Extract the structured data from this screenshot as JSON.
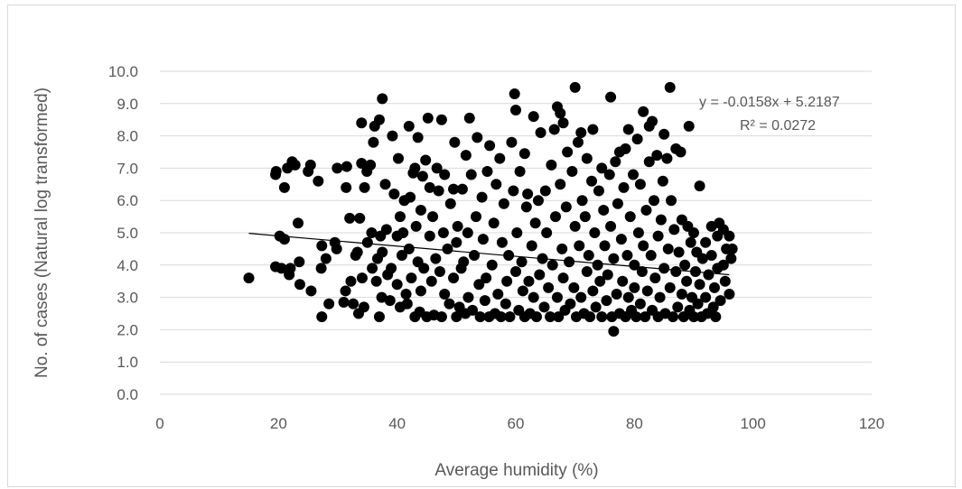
{
  "chart_data": {
    "type": "scatter",
    "title": "",
    "xlabel": "Average humidity (%)",
    "ylabel": "No. of cases (Natural log transformed)",
    "xlim": [
      0,
      120
    ],
    "ylim": [
      0,
      10
    ],
    "x_ticks": [
      0,
      20,
      40,
      60,
      80,
      100,
      120
    ],
    "y_ticks": [
      0.0,
      1.0,
      2.0,
      3.0,
      4.0,
      5.0,
      6.0,
      7.0,
      8.0,
      9.0,
      10.0
    ],
    "x_tick_labels": [
      "0",
      "20",
      "40",
      "60",
      "80",
      "100",
      "120"
    ],
    "y_tick_labels": [
      "0.0",
      "1.0",
      "2.0",
      "3.0",
      "4.0",
      "5.0",
      "6.0",
      "7.0",
      "8.0",
      "9.0",
      "10.0"
    ],
    "grid": "horizontal",
    "legend": "none",
    "marker_color": "#000000",
    "gridline_color": "#d9d9d9",
    "text_color": "#595959",
    "trendline": {
      "type": "linear",
      "slope": -0.0158,
      "intercept": 5.2187,
      "x_range": [
        15,
        96
      ],
      "equation_label": "y = -0.0158x + 5.2187",
      "r2_label": "R² = 0.0272"
    },
    "points": [
      [
        15,
        3.6
      ],
      [
        19.5,
        6.8
      ],
      [
        19.6,
        6.9
      ],
      [
        19.5,
        3.95
      ],
      [
        20.2,
        4.9
      ],
      [
        20.5,
        3.9
      ],
      [
        21,
        4.8
      ],
      [
        21,
        6.4
      ],
      [
        21.5,
        7.0
      ],
      [
        21.8,
        3.7
      ],
      [
        22,
        3.9
      ],
      [
        22.3,
        7.2
      ],
      [
        22.8,
        7.1
      ],
      [
        23.3,
        5.3
      ],
      [
        23.5,
        4.1
      ],
      [
        23.6,
        3.4
      ],
      [
        25,
        6.9
      ],
      [
        25.4,
        7.1
      ],
      [
        25.5,
        3.2
      ],
      [
        26.7,
        6.6
      ],
      [
        27.2,
        3.9
      ],
      [
        27.3,
        4.6
      ],
      [
        27.3,
        2.4
      ],
      [
        28,
        4.2
      ],
      [
        28.5,
        2.8
      ],
      [
        29.5,
        4.7
      ],
      [
        29.8,
        4.5
      ],
      [
        29.9,
        7.0
      ],
      [
        31,
        2.85
      ],
      [
        31.3,
        3.2
      ],
      [
        31.4,
        6.4
      ],
      [
        31.5,
        7.05
      ],
      [
        32.0,
        5.45
      ],
      [
        32.2,
        3.5
      ],
      [
        32.6,
        2.8
      ],
      [
        33,
        4.3
      ],
      [
        33.3,
        4.4
      ],
      [
        33.5,
        2.5
      ],
      [
        33.7,
        5.45
      ],
      [
        34,
        7.15
      ],
      [
        34,
        8.4
      ],
      [
        34.1,
        3.6
      ],
      [
        34.4,
        2.7
      ],
      [
        34.5,
        6.4
      ],
      [
        34.9,
        6.9
      ],
      [
        35.0,
        4.7
      ],
      [
        35.5,
        7.1
      ],
      [
        35.7,
        5.0
      ],
      [
        35.8,
        3.9
      ],
      [
        36,
        7.8
      ],
      [
        36.2,
        8.3
      ],
      [
        36.5,
        3.5
      ],
      [
        36.7,
        4.2
      ],
      [
        37,
        2.4
      ],
      [
        37,
        8.5
      ],
      [
        37.2,
        4.9
      ],
      [
        37.4,
        3.0
      ],
      [
        37.5,
        9.15
      ],
      [
        37.5,
        4.4
      ],
      [
        38.0,
        6.5
      ],
      [
        38.2,
        5.1
      ],
      [
        38.4,
        3.7
      ],
      [
        38.8,
        2.9
      ],
      [
        39,
        3.9
      ],
      [
        39.2,
        8.0
      ],
      [
        39.5,
        6.2
      ],
      [
        40,
        4.9
      ],
      [
        40,
        3.4
      ],
      [
        40.2,
        7.3
      ],
      [
        40.5,
        2.7
      ],
      [
        40.5,
        5.5
      ],
      [
        40.8,
        4.3
      ],
      [
        41,
        5.0
      ],
      [
        41.2,
        6.0
      ],
      [
        41.5,
        3.1
      ],
      [
        41.7,
        2.8
      ],
      [
        42,
        8.3
      ],
      [
        42,
        4.5
      ],
      [
        42.2,
        6.1
      ],
      [
        42.4,
        3.6
      ],
      [
        42.7,
        6.85
      ],
      [
        43,
        2.4
      ],
      [
        43,
        7.0
      ],
      [
        43.2,
        5.2
      ],
      [
        43.5,
        4.1
      ],
      [
        43.5,
        7.95
      ],
      [
        43.8,
        2.55
      ],
      [
        44,
        3.2
      ],
      [
        44,
        5.7
      ],
      [
        44.3,
        6.75
      ],
      [
        44.5,
        3.9
      ],
      [
        44.8,
        7.25
      ],
      [
        45,
        2.4
      ],
      [
        45.2,
        8.55
      ],
      [
        45.5,
        4.9
      ],
      [
        45.5,
        6.4
      ],
      [
        45.8,
        3.5
      ],
      [
        46,
        5.5
      ],
      [
        46.2,
        2.45
      ],
      [
        46.5,
        4.2
      ],
      [
        46.7,
        7.0
      ],
      [
        47.0,
        6.3
      ],
      [
        47.2,
        3.8
      ],
      [
        47.5,
        2.4
      ],
      [
        47.5,
        8.5
      ],
      [
        47.8,
        5.0
      ],
      [
        48,
        6.8
      ],
      [
        48,
        3.1
      ],
      [
        48.5,
        4.5
      ],
      [
        48.8,
        2.8
      ],
      [
        49,
        5.9
      ],
      [
        49.5,
        3.6
      ],
      [
        49.5,
        6.35
      ],
      [
        49.7,
        7.8
      ],
      [
        50,
        2.4
      ],
      [
        50,
        4.7
      ],
      [
        50.2,
        5.2
      ],
      [
        50.5,
        2.7
      ],
      [
        50.8,
        3.9
      ],
      [
        51,
        6.35
      ],
      [
        51.2,
        4.1
      ],
      [
        51.5,
        2.5
      ],
      [
        51.6,
        7.4
      ],
      [
        51.9,
        5.0
      ],
      [
        52,
        3.0
      ],
      [
        52.2,
        8.55
      ],
      [
        52.5,
        6.8
      ],
      [
        52.7,
        2.6
      ],
      [
        53,
        4.3
      ],
      [
        53.3,
        5.5
      ],
      [
        53.5,
        7.95
      ],
      [
        53.8,
        3.4
      ],
      [
        54,
        2.4
      ],
      [
        54.3,
        6.1
      ],
      [
        54.5,
        4.8
      ],
      [
        54.8,
        2.9
      ],
      [
        55,
        3.6
      ],
      [
        55.2,
        6.9
      ],
      [
        55.5,
        2.4
      ],
      [
        55.6,
        7.7
      ],
      [
        56,
        4.0
      ],
      [
        56.3,
        5.3
      ],
      [
        56.5,
        2.5
      ],
      [
        56.7,
        6.5
      ],
      [
        57,
        3.1
      ],
      [
        57.3,
        7.3
      ],
      [
        57.5,
        2.4
      ],
      [
        57.7,
        4.7
      ],
      [
        58,
        5.9
      ],
      [
        58.3,
        2.8
      ],
      [
        58.5,
        3.5
      ],
      [
        58.8,
        4.3
      ],
      [
        59,
        2.4
      ],
      [
        59.3,
        7.8
      ],
      [
        59.6,
        6.3
      ],
      [
        59.8,
        9.3
      ],
      [
        60,
        8.8
      ],
      [
        60,
        3.8
      ],
      [
        60.2,
        5.0
      ],
      [
        60.5,
        2.6
      ],
      [
        60.7,
        6.9
      ],
      [
        61,
        4.1
      ],
      [
        61.2,
        3.2
      ],
      [
        61.5,
        2.4
      ],
      [
        61.5,
        7.45
      ],
      [
        61.8,
        5.8
      ],
      [
        62,
        6.2
      ],
      [
        62.2,
        3.5
      ],
      [
        62.4,
        2.5
      ],
      [
        62.7,
        4.6
      ],
      [
        63,
        8.6
      ],
      [
        63,
        3.0
      ],
      [
        63.3,
        5.3
      ],
      [
        63.5,
        2.4
      ],
      [
        63.8,
        6.0
      ],
      [
        64,
        3.7
      ],
      [
        64.2,
        8.1
      ],
      [
        64.5,
        4.2
      ],
      [
        64.8,
        2.7
      ],
      [
        65,
        6.3
      ],
      [
        65.2,
        5.0
      ],
      [
        65.5,
        3.3
      ],
      [
        65.8,
        2.4
      ],
      [
        66,
        7.1
      ],
      [
        66.2,
        4.0
      ],
      [
        66.5,
        8.2
      ],
      [
        66.7,
        5.5
      ],
      [
        67,
        3.0
      ],
      [
        67,
        8.9
      ],
      [
        67.2,
        2.4
      ],
      [
        67.5,
        6.5
      ],
      [
        67.5,
        8.7
      ],
      [
        67.8,
        4.5
      ],
      [
        68,
        3.6
      ],
      [
        68,
        8.4
      ],
      [
        68.3,
        2.6
      ],
      [
        68.5,
        5.8
      ],
      [
        68.7,
        7.5
      ],
      [
        69,
        4.1
      ],
      [
        69.2,
        2.8
      ],
      [
        69.5,
        6.9
      ],
      [
        69.8,
        3.3
      ],
      [
        70,
        9.5
      ],
      [
        70,
        5.2
      ],
      [
        70.2,
        2.4
      ],
      [
        70.5,
        7.8
      ],
      [
        70.7,
        4.6
      ],
      [
        71,
        3.0
      ],
      [
        71,
        8.1
      ],
      [
        71.2,
        6.0
      ],
      [
        71.5,
        2.5
      ],
      [
        71.7,
        5.5
      ],
      [
        72,
        3.8
      ],
      [
        72,
        7.3
      ],
      [
        72.3,
        4.3
      ],
      [
        72.5,
        2.4
      ],
      [
        72.8,
        6.6
      ],
      [
        73,
        3.2
      ],
      [
        73,
        8.2
      ],
      [
        73.3,
        5.0
      ],
      [
        73.5,
        2.7
      ],
      [
        73.8,
        4.0
      ],
      [
        74,
        6.3
      ],
      [
        74.2,
        3.5
      ],
      [
        74.5,
        2.4
      ],
      [
        74.5,
        7.0
      ],
      [
        74.8,
        5.7
      ],
      [
        75,
        4.6
      ],
      [
        75.3,
        2.9
      ],
      [
        75.5,
        3.7
      ],
      [
        75.8,
        6.8
      ],
      [
        76,
        9.2
      ],
      [
        76,
        5.2
      ],
      [
        76.2,
        2.4
      ],
      [
        76.5,
        1.95
      ],
      [
        76.5,
        4.2
      ],
      [
        76.8,
        7.2
      ],
      [
        77,
        3.1
      ],
      [
        77.2,
        5.9
      ],
      [
        77.5,
        2.5
      ],
      [
        77.5,
        7.5
      ],
      [
        77.8,
        4.8
      ],
      [
        78,
        3.5
      ],
      [
        78.2,
        6.4
      ],
      [
        78.5,
        2.4
      ],
      [
        78.5,
        7.6
      ],
      [
        78.8,
        4.3
      ],
      [
        79,
        8.2
      ],
      [
        79,
        3.0
      ],
      [
        79.3,
        5.5
      ],
      [
        79.5,
        2.6
      ],
      [
        79.8,
        6.8
      ],
      [
        80,
        4.0
      ],
      [
        80,
        3.3
      ],
      [
        80.3,
        2.4
      ],
      [
        80.5,
        7.9
      ],
      [
        80.7,
        5.0
      ],
      [
        81,
        2.8
      ],
      [
        81,
        6.5
      ],
      [
        81.3,
        3.8
      ],
      [
        81.5,
        8.75
      ],
      [
        81.5,
        4.6
      ],
      [
        81.8,
        2.4
      ],
      [
        82,
        5.7
      ],
      [
        82.2,
        3.2
      ],
      [
        82.5,
        7.2
      ],
      [
        82.5,
        8.3
      ],
      [
        82.8,
        4.3
      ],
      [
        83,
        2.6
      ],
      [
        83,
        8.45
      ],
      [
        83.3,
        6.0
      ],
      [
        83.5,
        3.6
      ],
      [
        83.8,
        7.4
      ],
      [
        84,
        4.9
      ],
      [
        84,
        2.4
      ],
      [
        84.3,
        3.0
      ],
      [
        84.5,
        5.4
      ],
      [
        84.8,
        6.6
      ],
      [
        85,
        3.9
      ],
      [
        85,
        8.05
      ],
      [
        85.2,
        2.5
      ],
      [
        85.5,
        7.3
      ],
      [
        85.7,
        4.5
      ],
      [
        86,
        9.5
      ],
      [
        86,
        3.3
      ],
      [
        86.2,
        6.0
      ],
      [
        86.5,
        2.4
      ],
      [
        86.7,
        5.1
      ],
      [
        87,
        7.6
      ],
      [
        87,
        3.8
      ],
      [
        87.3,
        2.7
      ],
      [
        87.5,
        4.4
      ],
      [
        87.8,
        7.5
      ],
      [
        88,
        3.1
      ],
      [
        88,
        5.4
      ],
      [
        88.3,
        2.4
      ],
      [
        88.5,
        4.0
      ],
      [
        88.8,
        3.5
      ],
      [
        89,
        5.2
      ],
      [
        89.2,
        8.3
      ],
      [
        89.3,
        2.6
      ],
      [
        89.5,
        4.7
      ],
      [
        89.7,
        3.0
      ],
      [
        90,
        2.4
      ],
      [
        90,
        5.0
      ],
      [
        90.3,
        3.8
      ],
      [
        90.5,
        4.4
      ],
      [
        90.7,
        2.8
      ],
      [
        91,
        6.45
      ],
      [
        91,
        3.4
      ],
      [
        91.3,
        2.4
      ],
      [
        91.5,
        4.2
      ],
      [
        92,
        4.7
      ],
      [
        92,
        3.0
      ],
      [
        92.3,
        2.5
      ],
      [
        92.5,
        3.7
      ],
      [
        93,
        5.2
      ],
      [
        93,
        4.3
      ],
      [
        93.3,
        2.7
      ],
      [
        93.5,
        3.3
      ],
      [
        93.7,
        2.4
      ],
      [
        94,
        4.9
      ],
      [
        94,
        3.9
      ],
      [
        94.3,
        5.3
      ],
      [
        94.5,
        2.9
      ],
      [
        95,
        4.0
      ],
      [
        95,
        5.1
      ],
      [
        95.3,
        3.5
      ],
      [
        95.5,
        4.5
      ],
      [
        96,
        3.1
      ],
      [
        96,
        4.9
      ],
      [
        96.3,
        4.2
      ],
      [
        96.5,
        4.5
      ]
    ]
  }
}
